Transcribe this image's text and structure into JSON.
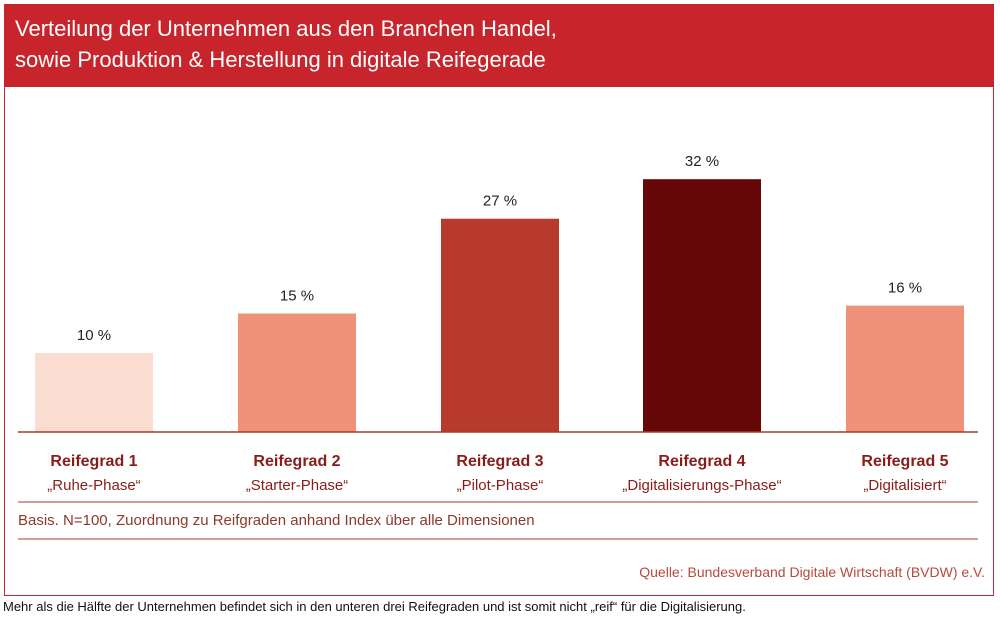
{
  "header": {
    "title_line1": "Verteilung der Unternehmen aus den Branchen Handel,",
    "title_line2": "sowie Produktion & Herstellung in digitale Reifegerade"
  },
  "chart_data": {
    "type": "bar",
    "title": "Verteilung der Unternehmen aus den Branchen Handel, sowie Produktion & Herstellung in digitale Reifegerade",
    "categories": [
      "Reifegrad 1",
      "Reifegrad 2",
      "Reifegrad 3",
      "Reifegrad 4",
      "Reifegrad 5"
    ],
    "subcategories": [
      "„Ruhe-Phase“",
      "„Starter-Phase“",
      "„Pilot-Phase“",
      "„Digitalisierungs-Phase“",
      "„Digitalisiert“"
    ],
    "values": [
      10,
      15,
      27,
      32,
      16
    ],
    "value_labels": [
      "10 %",
      "15 %",
      "27 %",
      "32 %",
      "16 %"
    ],
    "colors": [
      "#fbdcd0",
      "#f0917a",
      "#b83a2c",
      "#660808",
      "#f0917a"
    ],
    "ylim": [
      0,
      40
    ],
    "grid": false,
    "xlabel": "",
    "ylabel": ""
  },
  "footer": {
    "basis": "Basis. N=100, Zuordnung zu Reifgraden anhand Index über alle Dimensionen",
    "source": "Quelle: Bundesverband Digitale Wirtschaft (BVDW) e.V."
  },
  "caption": "Mehr als die Hälfte der Unternehmen befindet sich in den unteren drei Reifegraden und ist somit nicht „reif“ für die Digitalisierung."
}
